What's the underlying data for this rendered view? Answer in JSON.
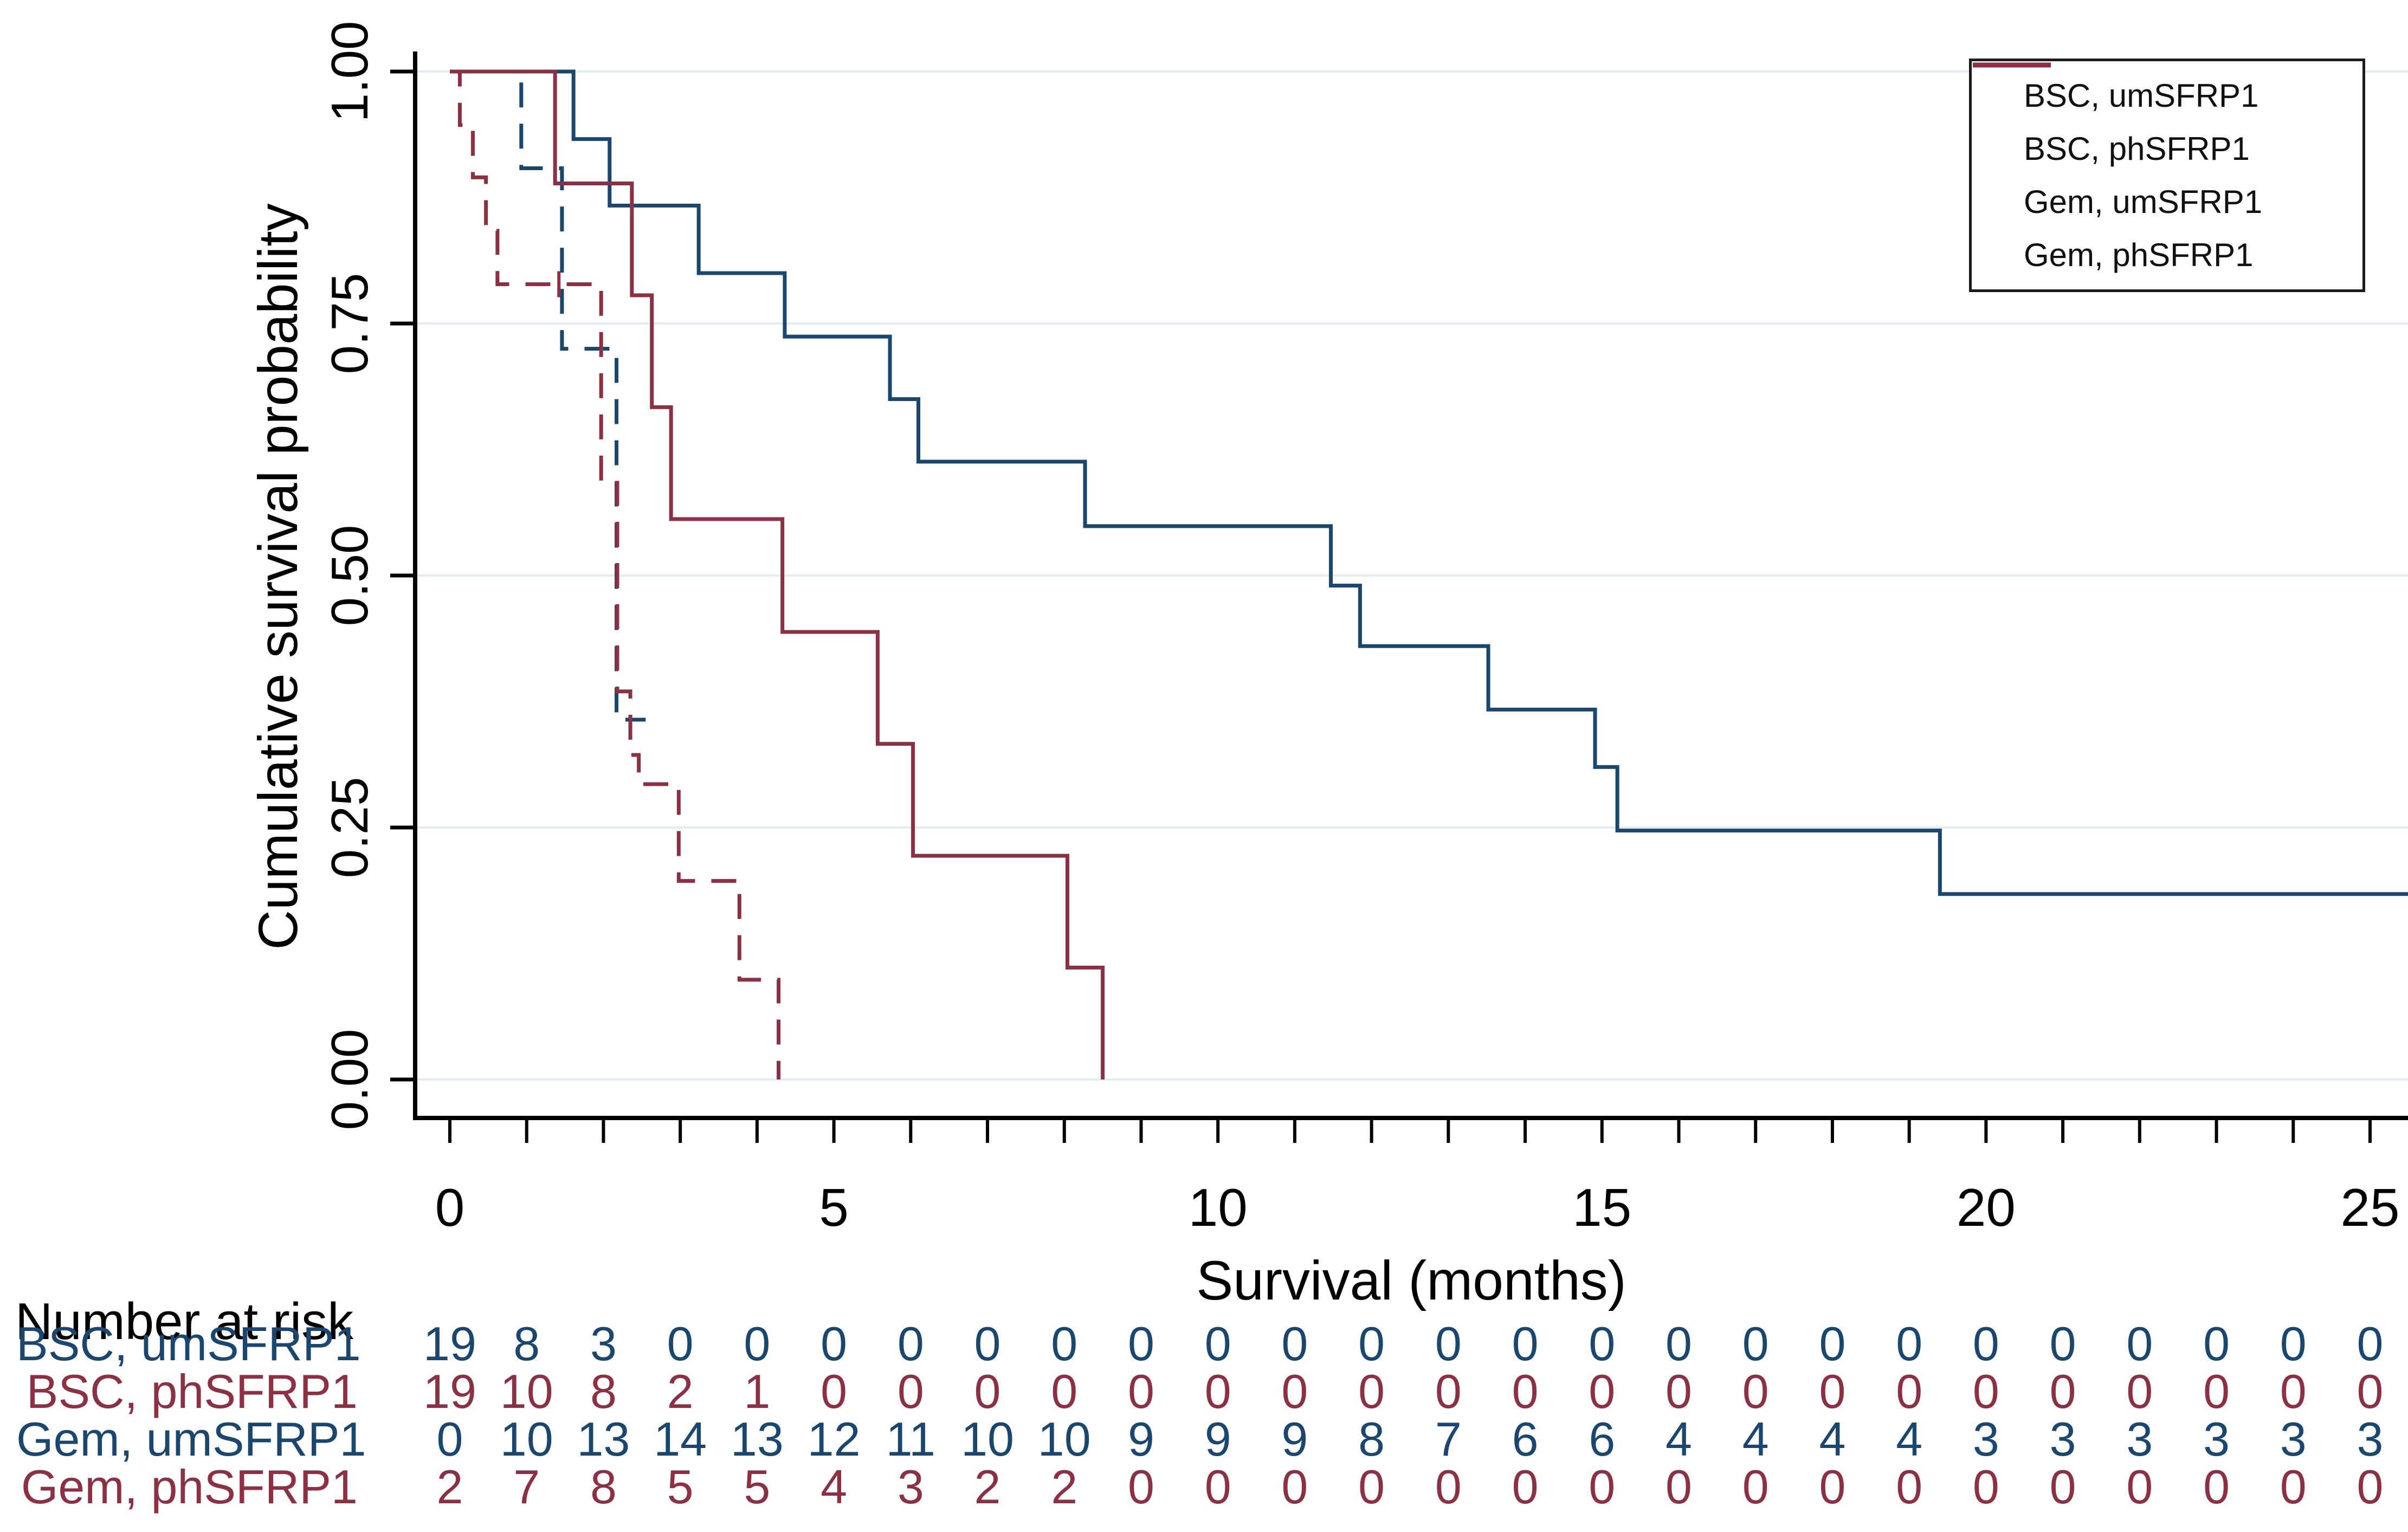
{
  "figure": {
    "y_axis": {
      "title": "Cumulative survival probability",
      "tick_labels": [
        "0.00",
        "0.25",
        "0.50",
        "0.75",
        "1.00"
      ],
      "tick_values": [
        0,
        0.25,
        0.5,
        0.75,
        1.0
      ]
    },
    "x_axis": {
      "title": "Survival (months)",
      "tick_labels": [
        "0",
        "5",
        "10",
        "15",
        "20",
        "25"
      ],
      "tick_values": [
        0,
        5,
        10,
        15,
        20,
        25
      ],
      "minor_tick_every": 1,
      "range": [
        0,
        25
      ]
    },
    "legend": {
      "position": "top-right",
      "items": [
        {
          "label": "BSC, umSFRP1",
          "color": "#1a476f",
          "dashed": true
        },
        {
          "label": "BSC, phSFRP1",
          "color": "#8e3044",
          "dashed": true
        },
        {
          "label": "Gem, umSFRP1",
          "color": "#1a476f",
          "dashed": false
        },
        {
          "label": "Gem, phSFRP1",
          "color": "#8e3044",
          "dashed": false
        }
      ]
    },
    "risk_table": {
      "title": "Number at risk",
      "months": [
        0,
        1,
        2,
        3,
        4,
        5,
        6,
        7,
        8,
        9,
        10,
        11,
        12,
        13,
        14,
        15,
        16,
        17,
        18,
        19,
        20,
        21,
        22,
        23,
        24,
        25
      ],
      "rows": [
        {
          "label": "BSC, umSFRP1",
          "color": "#1a476f",
          "values": [
            19,
            8,
            3,
            0,
            0,
            0,
            0,
            0,
            0,
            0,
            0,
            0,
            0,
            0,
            0,
            0,
            0,
            0,
            0,
            0,
            0,
            0,
            0,
            0,
            0,
            0
          ]
        },
        {
          "label": "BSC, phSFRP1",
          "color": "#8e3044",
          "values": [
            19,
            10,
            8,
            2,
            1,
            0,
            0,
            0,
            0,
            0,
            0,
            0,
            0,
            0,
            0,
            0,
            0,
            0,
            0,
            0,
            0,
            0,
            0,
            0,
            0,
            0
          ]
        },
        {
          "label": "Gem, umSFRP1",
          "color": "#1a476f",
          "values": [
            0,
            10,
            13,
            14,
            13,
            12,
            11,
            10,
            10,
            9,
            9,
            9,
            8,
            7,
            6,
            6,
            4,
            4,
            4,
            4,
            3,
            3,
            3,
            3,
            3,
            3
          ]
        },
        {
          "label": "Gem, phSFRP1",
          "color": "#8e3044",
          "values": [
            2,
            7,
            8,
            5,
            5,
            4,
            3,
            2,
            2,
            0,
            0,
            0,
            0,
            0,
            0,
            0,
            0,
            0,
            0,
            0,
            0,
            0,
            0,
            0,
            0,
            0
          ]
        }
      ]
    },
    "colors": {
      "navy": "#1a476f",
      "maroon": "#8e3044",
      "grid": "#e2edf0",
      "axis": "#000000"
    }
  },
  "chart_data": {
    "type": "line",
    "subtype": "kaplan-meier-step",
    "title": "",
    "xlabel": "Survival (months)",
    "ylabel": "Cumulative survival probability",
    "xlim": [
      0,
      25
    ],
    "ylim": [
      0,
      1
    ],
    "grid": true,
    "legend_position": "top-right",
    "series": [
      {
        "name": "BSC, umSFRP1",
        "color": "#1a476f",
        "dashed": true,
        "steps": [
          [
            0,
            1.0
          ],
          [
            0.93,
            0.904
          ],
          [
            1.46,
            0.725
          ],
          [
            2.17,
            0.357
          ]
        ],
        "end": 2.55,
        "end_at_zero": false,
        "censor_marks": []
      },
      {
        "name": "BSC, phSFRP1",
        "color": "#8e3044",
        "dashed": true,
        "steps": [
          [
            0,
            1.0
          ],
          [
            0.13,
            0.947
          ],
          [
            0.3,
            0.895
          ],
          [
            0.47,
            0.842
          ],
          [
            0.62,
            0.789
          ],
          [
            1.97,
            0.592
          ],
          [
            2.18,
            0.385
          ],
          [
            2.35,
            0.322
          ],
          [
            2.46,
            0.293
          ],
          [
            2.98,
            0.197
          ],
          [
            3.77,
            0.099
          ],
          [
            4.28,
            0.0
          ]
        ],
        "end": 4.28,
        "end_at_zero": true,
        "censor_marks": [
          [
            1.42,
            0.789
          ]
        ]
      },
      {
        "name": "Gem, umSFRP1",
        "color": "#1a476f",
        "dashed": false,
        "steps": [
          [
            0.88,
            1.0
          ],
          [
            1.61,
            0.933
          ],
          [
            2.08,
            0.867
          ],
          [
            3.24,
            0.8
          ],
          [
            4.36,
            0.737
          ],
          [
            5.73,
            0.675
          ],
          [
            6.1,
            0.613
          ],
          [
            8.27,
            0.549
          ],
          [
            11.47,
            0.49
          ],
          [
            11.85,
            0.43
          ],
          [
            13.52,
            0.367
          ],
          [
            14.91,
            0.31
          ],
          [
            15.2,
            0.247
          ],
          [
            19.4,
            0.184
          ]
        ],
        "end": 25.6,
        "end_at_zero": false,
        "censor_marks": []
      },
      {
        "name": "Gem, phSFRP1",
        "color": "#8e3044",
        "dashed": false,
        "steps": [
          [
            0,
            1.0
          ],
          [
            1.37,
            0.889
          ],
          [
            2.37,
            0.778
          ],
          [
            2.63,
            0.667
          ],
          [
            2.88,
            0.556
          ],
          [
            4.33,
            0.444
          ],
          [
            5.57,
            0.333
          ],
          [
            6.03,
            0.222
          ],
          [
            8.04,
            0.111
          ],
          [
            8.5,
            0.0
          ]
        ],
        "end": 8.5,
        "end_at_zero": true,
        "censor_marks": []
      }
    ]
  }
}
